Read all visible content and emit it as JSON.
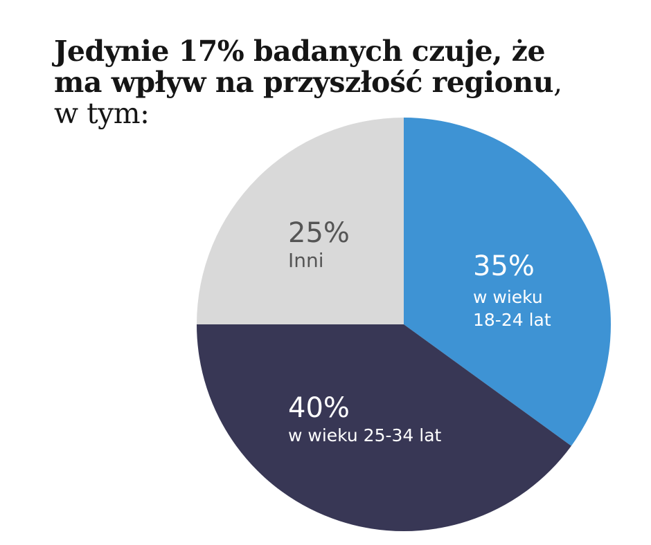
{
  "title": {
    "bold_part": "Jedynie 17% badanych czuje, że ma wpływ na przyszłość regionu",
    "normal_part": ", w tym:"
  },
  "chart_data": {
    "type": "pie",
    "title": "Jedynie 17% badanych czuje, że ma wpływ na przyszłość regionu, w tym:",
    "start_angle_deg": 0,
    "direction": "clockwise",
    "slices": [
      {
        "label": "w wieku 18-24 lat",
        "value": 35,
        "value_label": "35%",
        "label_lines": [
          "w wieku",
          "18-24 lat"
        ],
        "color": "#3e93d4",
        "text_color": "#ffffff"
      },
      {
        "label": "w wieku 25-34 lat",
        "value": 40,
        "value_label": "40%",
        "label_lines": [
          "w wieku 25-34 lat"
        ],
        "color": "#383755",
        "text_color": "#ffffff"
      },
      {
        "label": "Inni",
        "value": 25,
        "value_label": "25%",
        "label_lines": [
          "Inni"
        ],
        "color": "#d9d9d9",
        "text_color": "#555555"
      }
    ]
  }
}
